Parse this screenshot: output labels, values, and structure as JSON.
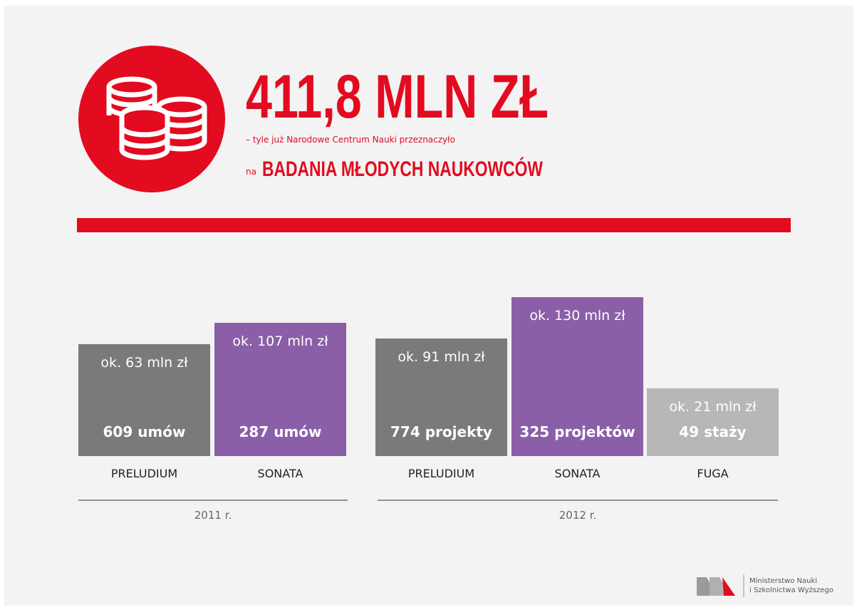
{
  "header": {
    "headline": "411,8 MLN ZŁ",
    "subtitle": "– tyle już Narodowe Centrum Nauki przeznaczyło",
    "prefix": "na",
    "highlight": "BADANIA MŁODYCH NAUKOWCÓW"
  },
  "groups": [
    {
      "label": "2011 r.",
      "bars": [
        {
          "amount": "ok. 63 mln zł",
          "count": "609 umów",
          "name": "PRELUDIUM"
        },
        {
          "amount": "ok. 107 mln zł",
          "count": "287 umów",
          "name": "SONATA"
        }
      ]
    },
    {
      "label": "2012 r.",
      "bars": [
        {
          "amount": "ok. 91 mln zł",
          "count": "774 projekty",
          "name": "PRELUDIUM"
        },
        {
          "amount": "ok. 130 mln zł",
          "count": "325 projektów",
          "name": "SONATA"
        },
        {
          "amount": "ok. 21 mln zł",
          "count": "49 staży",
          "name": "FUGA"
        }
      ]
    }
  ],
  "logo": {
    "line1": "Ministerstwo Nauki",
    "line2": "i Szkolnictwa Wyższego"
  }
}
